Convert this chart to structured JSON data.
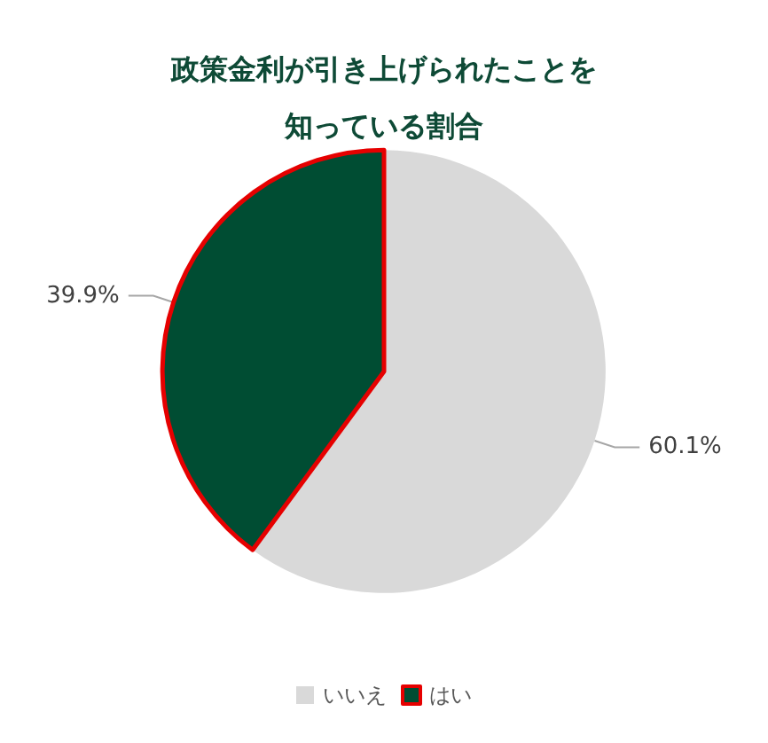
{
  "chart_data": {
    "type": "pie",
    "title": "政策金利が引き上げられたことを知っている割合",
    "categories": [
      "いいえ",
      "はい"
    ],
    "values": [
      60.1,
      39.9
    ],
    "colors": [
      "#d9d9d9",
      "#004d33"
    ],
    "value_labels": [
      "60.1%",
      "39.9%"
    ],
    "legend": "bottom"
  }
}
